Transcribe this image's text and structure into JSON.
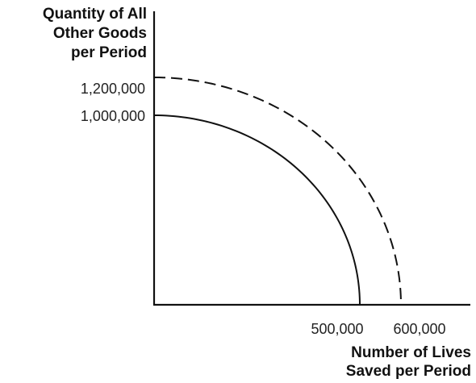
{
  "chart_data": {
    "type": "line",
    "title": "",
    "ylabel_lines": [
      "Quantity of All",
      "Other Goods",
      "per Period"
    ],
    "xlabel_lines": [
      "Number of Lives",
      "Saved per Period"
    ],
    "x_ticks": [
      "500,000",
      "600,000"
    ],
    "y_ticks": [
      "1,000,000",
      "1,200,000"
    ],
    "xlim": [
      0,
      760000
    ],
    "ylim": [
      0,
      1200000
    ],
    "grid": false,
    "legend": "none",
    "series": [
      {
        "style": "solid",
        "color": "#111111",
        "x": [
          0,
          150000,
          250000,
          350000,
          420000,
          470000,
          500000
        ],
        "y": [
          1000000,
          954000,
          866000,
          714000,
          543000,
          341000,
          0
        ]
      },
      {
        "style": "dashed",
        "color": "#111111",
        "x": [
          0,
          180000,
          300000,
          420000,
          500000,
          560000,
          600000
        ],
        "y": [
          1200000,
          1145000,
          1039000,
          857000,
          663000,
          434000,
          0
        ]
      }
    ]
  }
}
